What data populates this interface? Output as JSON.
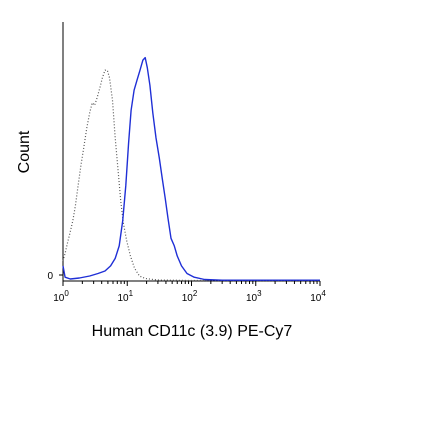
{
  "chart_data": {
    "type": "line",
    "title": "",
    "xlabel": "Human CD11c (3.9) PE-Cy7",
    "ylabel": "Count",
    "x_scale": "log",
    "xlim": [
      1,
      10000
    ],
    "x_ticks": [
      {
        "value": 1,
        "base": "10",
        "exp": "0"
      },
      {
        "value": 10,
        "base": "10",
        "exp": "1"
      },
      {
        "value": 100,
        "base": "10",
        "exp": "2"
      },
      {
        "value": 1000,
        "base": "10",
        "exp": "3"
      },
      {
        "value": 10000,
        "base": "10",
        "exp": "4"
      }
    ],
    "y_ticks": [
      {
        "value": 0,
        "label": "0"
      }
    ],
    "ylim": [
      0,
      100
    ],
    "grid": false,
    "series": [
      {
        "style": "dotted",
        "color": "#555555",
        "points": [
          [
            1.0,
            8
          ],
          [
            1.08,
            11
          ],
          [
            1.17,
            15
          ],
          [
            1.28,
            19
          ],
          [
            1.42,
            24
          ],
          [
            1.56,
            30
          ],
          [
            1.72,
            38
          ],
          [
            1.9,
            46
          ],
          [
            2.1,
            53
          ],
          [
            2.35,
            61
          ],
          [
            2.6,
            67
          ],
          [
            2.85,
            71
          ],
          [
            3.1,
            70
          ],
          [
            3.4,
            73
          ],
          [
            3.75,
            77
          ],
          [
            4.1,
            81
          ],
          [
            4.5,
            84
          ],
          [
            4.9,
            84
          ],
          [
            5.3,
            81
          ],
          [
            5.9,
            72
          ],
          [
            6.5,
            57
          ],
          [
            7.2,
            44
          ],
          [
            7.9,
            32
          ],
          [
            8.7,
            23
          ],
          [
            9.8,
            16
          ],
          [
            11.2,
            10
          ],
          [
            13.0,
            5
          ],
          [
            15.5,
            2
          ],
          [
            19.0,
            1
          ],
          [
            30,
            0.4
          ],
          [
            100,
            0.2
          ],
          [
            10000,
            0.2
          ]
        ]
      },
      {
        "style": "solid",
        "color": "#1f2fd6",
        "points": [
          [
            1.0,
            6
          ],
          [
            1.08,
            1.5
          ],
          [
            1.3,
            0.8
          ],
          [
            1.8,
            1.2
          ],
          [
            2.6,
            2
          ],
          [
            3.5,
            3
          ],
          [
            4.5,
            4
          ],
          [
            5.5,
            6
          ],
          [
            6.5,
            9
          ],
          [
            7.5,
            14
          ],
          [
            8.5,
            24
          ],
          [
            9.5,
            38
          ],
          [
            10.5,
            55
          ],
          [
            11.5,
            68
          ],
          [
            12.8,
            76
          ],
          [
            14.2,
            80
          ],
          [
            15.8,
            84
          ],
          [
            17.5,
            88
          ],
          [
            19.0,
            89
          ],
          [
            20.5,
            85
          ],
          [
            22.5,
            78
          ],
          [
            25,
            67
          ],
          [
            28,
            57
          ],
          [
            31.5,
            49
          ],
          [
            35,
            41
          ],
          [
            39,
            33
          ],
          [
            43,
            25
          ],
          [
            48,
            17
          ],
          [
            54,
            14
          ],
          [
            60,
            10
          ],
          [
            70,
            6
          ],
          [
            85,
            3
          ],
          [
            110,
            1.5
          ],
          [
            160,
            0.6
          ],
          [
            300,
            0.3
          ],
          [
            10000,
            0.3
          ]
        ]
      }
    ]
  }
}
